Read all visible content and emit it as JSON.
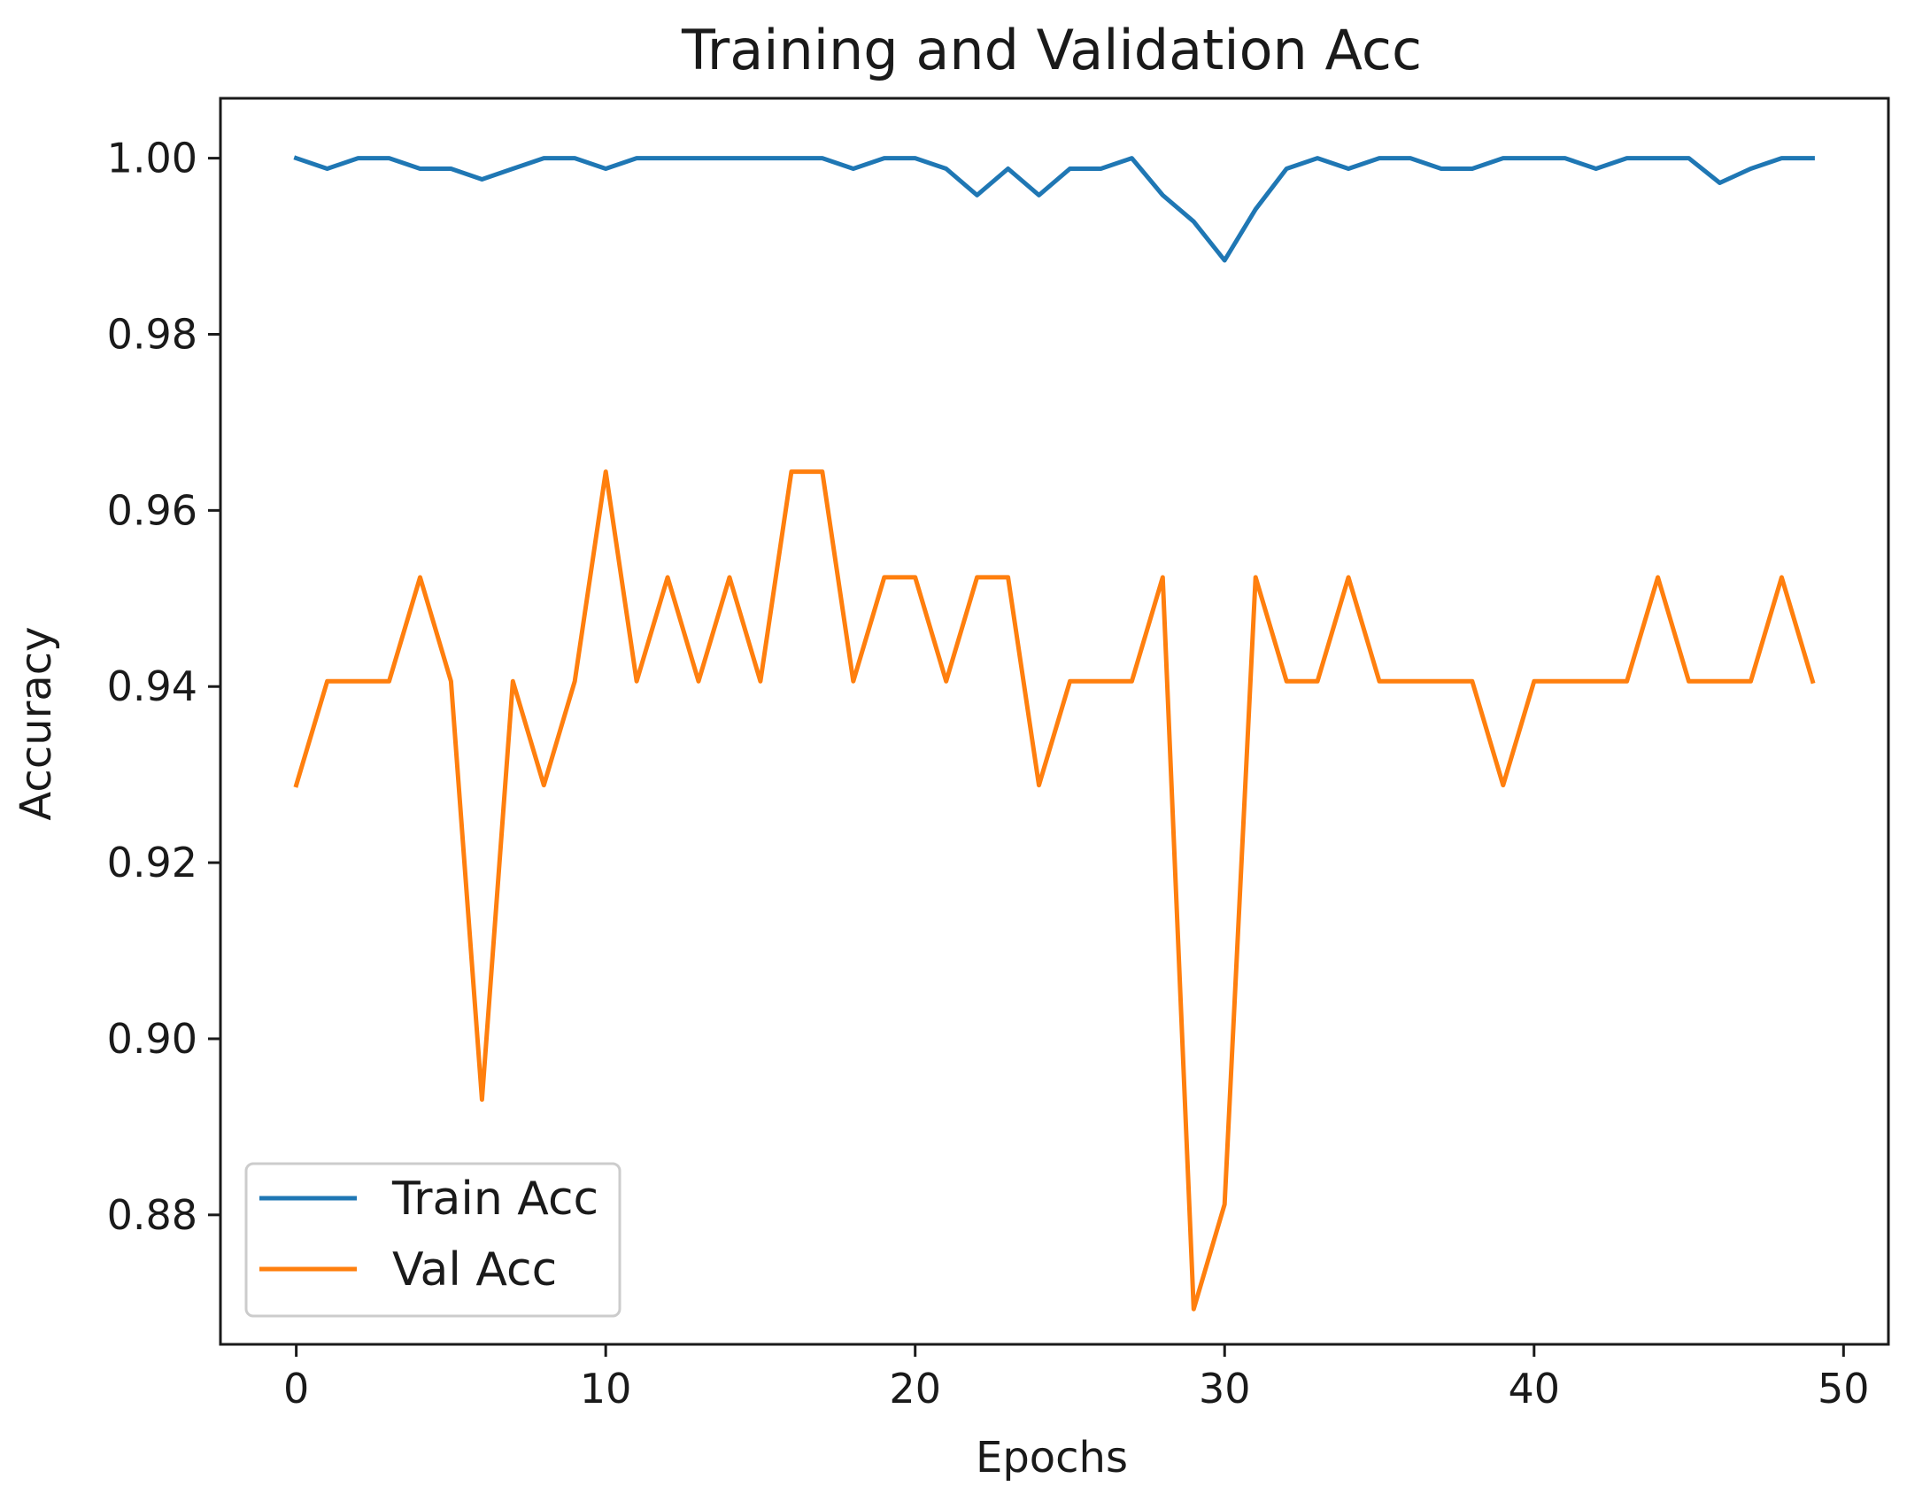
{
  "chart_data": {
    "type": "line",
    "title": "Training and Validation Acc",
    "xlabel": "Epochs",
    "ylabel": "Accuracy",
    "xlim": [
      -2.45,
      51.45
    ],
    "ylim": [
      0.8653,
      1.0068
    ],
    "xticks": [
      0,
      10,
      20,
      30,
      40,
      50
    ],
    "yticks": [
      0.88,
      0.9,
      0.92,
      0.94,
      0.96,
      0.98,
      1.0
    ],
    "xtick_labels": [
      "0",
      "10",
      "20",
      "30",
      "40",
      "50"
    ],
    "ytick_labels": [
      "0.88",
      "0.90",
      "0.92",
      "0.94",
      "0.96",
      "0.98",
      "1.00"
    ],
    "grid": false,
    "legend_position": "lower-left",
    "x": [
      0,
      1,
      2,
      3,
      4,
      5,
      6,
      7,
      8,
      9,
      10,
      11,
      12,
      13,
      14,
      15,
      16,
      17,
      18,
      19,
      20,
      21,
      22,
      23,
      24,
      25,
      26,
      27,
      28,
      29,
      30,
      31,
      32,
      33,
      34,
      35,
      36,
      37,
      38,
      39,
      40,
      41,
      42,
      43,
      44,
      45,
      46,
      47,
      48,
      49
    ],
    "series": [
      {
        "name": "Train Acc",
        "color": "#1f77b4",
        "values": [
          1.0,
          0.9988,
          1.0,
          1.0,
          0.9988,
          0.9988,
          0.9976,
          0.9988,
          1.0,
          1.0,
          0.9988,
          1.0,
          1.0,
          1.0,
          1.0,
          1.0,
          1.0,
          1.0,
          0.9988,
          1.0,
          1.0,
          0.9988,
          0.9958,
          0.9988,
          0.9958,
          0.9988,
          0.9988,
          1.0,
          0.9958,
          0.9928,
          0.9884,
          0.9942,
          0.9988,
          1.0,
          0.9988,
          1.0,
          1.0,
          0.9988,
          0.9988,
          1.0,
          1.0,
          1.0,
          0.9988,
          1.0,
          1.0,
          1.0,
          0.9972,
          0.9988,
          1.0,
          1.0
        ]
      },
      {
        "name": "Val Acc",
        "color": "#ff7f0e",
        "values": [
          0.9288,
          0.9406,
          0.9406,
          0.9406,
          0.9524,
          0.9406,
          0.8931,
          0.9406,
          0.9288,
          0.9406,
          0.9644,
          0.9406,
          0.9524,
          0.9406,
          0.9524,
          0.9406,
          0.9644,
          0.9644,
          0.9406,
          0.9524,
          0.9524,
          0.9406,
          0.9524,
          0.9524,
          0.9288,
          0.9406,
          0.9406,
          0.9406,
          0.9524,
          0.8693,
          0.8812,
          0.9524,
          0.9406,
          0.9406,
          0.9524,
          0.9406,
          0.9406,
          0.9406,
          0.9406,
          0.9288,
          0.9406,
          0.9406,
          0.9406,
          0.9406,
          0.9524,
          0.9406,
          0.9406,
          0.9406,
          0.9524,
          0.9406
        ]
      }
    ]
  }
}
